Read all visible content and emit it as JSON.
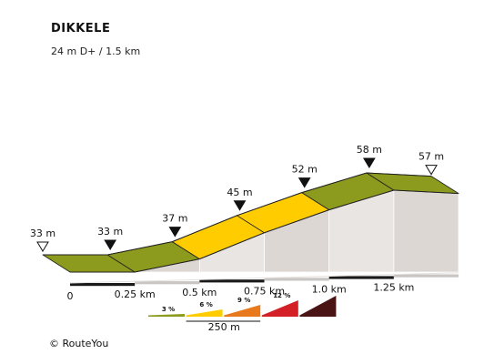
{
  "chart_data": {
    "type": "area",
    "title": "DIKKELE",
    "subtitle": "24 m D+ / 1.5 km",
    "x_unit": "km",
    "y_unit": "m",
    "points": [
      {
        "km": 0,
        "elev": 33,
        "label": "33 m",
        "marker": "open"
      },
      {
        "km": 0.25,
        "elev": 33,
        "label": "33 m",
        "marker": "filled"
      },
      {
        "km": 0.5,
        "elev": 37,
        "label": "37 m",
        "marker": "filled"
      },
      {
        "km": 0.75,
        "elev": 45,
        "label": "45 m",
        "marker": "filled"
      },
      {
        "km": 1.0,
        "elev": 52,
        "label": "52 m",
        "marker": "filled"
      },
      {
        "km": 1.25,
        "elev": 58,
        "label": "58 m",
        "marker": "filled"
      },
      {
        "km": 1.5,
        "elev": 57,
        "label": "57 m",
        "marker": "open"
      }
    ],
    "x_tick_labels": [
      "0",
      "0.25 km",
      "0.5 km",
      "0.75 km",
      "1.0 km",
      "1.25 km"
    ],
    "segment_colors": [
      "#8c9a1e",
      "#8c9a1e",
      "#ffcc00",
      "#ffcc00",
      "#8c9a1e",
      "#8c9a1e"
    ],
    "legend": [
      {
        "label": "3 %",
        "color": "#8c9a1e"
      },
      {
        "label": "6 %",
        "color": "#ffcc00"
      },
      {
        "label": "9 %",
        "color": "#e8791d"
      },
      {
        "label": "12 %",
        "color": "#d32027"
      },
      {
        "label": "",
        "color": "#4a1414"
      }
    ],
    "scale_label": "250 m"
  },
  "footer": "© RouteYou"
}
